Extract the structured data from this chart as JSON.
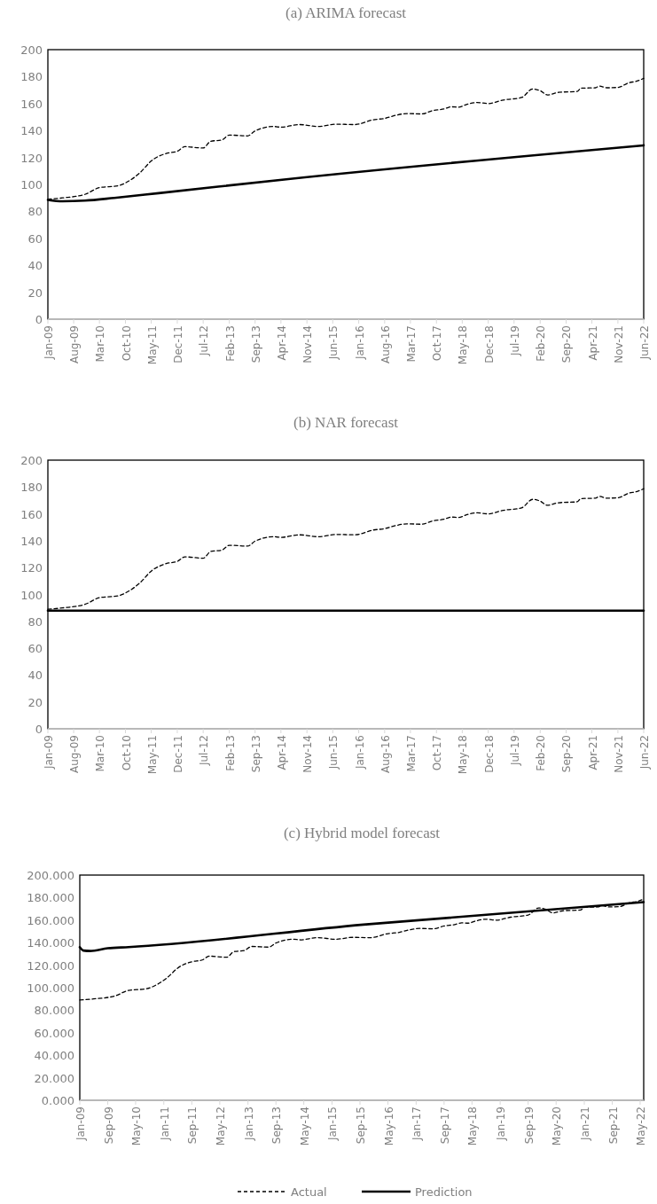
{
  "chart_data": [
    {
      "type": "line",
      "title": "(a) ARIMA forecast",
      "xlim": [
        "2009-01",
        "2022-06"
      ],
      "ylim": [
        0,
        200
      ],
      "yticks": [
        0,
        20,
        40,
        60,
        80,
        100,
        120,
        140,
        160,
        180,
        200
      ],
      "xticks": [
        {
          "value": "2009-01",
          "label": "Jan-09"
        },
        {
          "value": "2009-08",
          "label": "Aug-09"
        },
        {
          "value": "2010-03",
          "label": "Mar-10"
        },
        {
          "value": "2010-10",
          "label": "Oct-10"
        },
        {
          "value": "2011-05",
          "label": "May-11"
        },
        {
          "value": "2011-12",
          "label": "Dec-11"
        },
        {
          "value": "2012-07",
          "label": "Jul-12"
        },
        {
          "value": "2013-02",
          "label": "Feb-13"
        },
        {
          "value": "2013-09",
          "label": "Sep-13"
        },
        {
          "value": "2014-04",
          "label": "Apr-14"
        },
        {
          "value": "2014-11",
          "label": "Nov-14"
        },
        {
          "value": "2015-06",
          "label": "Jun-15"
        },
        {
          "value": "2016-01",
          "label": "Jan-16"
        },
        {
          "value": "2016-08",
          "label": "Aug-16"
        },
        {
          "value": "2017-03",
          "label": "Mar-17"
        },
        {
          "value": "2017-10",
          "label": "Oct-17"
        },
        {
          "value": "2018-05",
          "label": "May-18"
        },
        {
          "value": "2018-12",
          "label": "Dec-18"
        },
        {
          "value": "2019-07",
          "label": "Jul-19"
        },
        {
          "value": "2020-02",
          "label": "Feb-20"
        },
        {
          "value": "2020-09",
          "label": "Sep-20"
        },
        {
          "value": "2021-04",
          "label": "Apr-21"
        },
        {
          "value": "2021-11",
          "label": "Nov-21"
        },
        {
          "value": "2022-06",
          "label": "Jun-22"
        }
      ],
      "grid": false,
      "legend": false,
      "series": [
        {
          "color": "#000000",
          "line_style": "dashed",
          "x": [
            "2009-01",
            "2009-05",
            "2009-11",
            "2010-03",
            "2010-08",
            "2010-11",
            "2011-02",
            "2011-05",
            "2011-09",
            "2011-12",
            "2012-02",
            "2012-07",
            "2012-09",
            "2012-12",
            "2013-02",
            "2013-07",
            "2013-09",
            "2014-02",
            "2014-04",
            "2014-09",
            "2015-02",
            "2015-07",
            "2015-12",
            "2016-05",
            "2016-08",
            "2016-11",
            "2017-02",
            "2017-06",
            "2017-09",
            "2017-12",
            "2018-02",
            "2018-04",
            "2018-06",
            "2018-09",
            "2018-12",
            "2019-04",
            "2019-09",
            "2019-12",
            "2020-02",
            "2020-04",
            "2020-07",
            "2020-12",
            "2021-01",
            "2021-05",
            "2021-06",
            "2021-08",
            "2021-11",
            "2022-02",
            "2022-04",
            "2022-06"
          ],
          "values": [
            89,
            90,
            92.6,
            97.6,
            99,
            102.7,
            109,
            117.4,
            123,
            124.6,
            128,
            127,
            132,
            133,
            136.6,
            136,
            139.7,
            143,
            142.5,
            144.4,
            143,
            144.7,
            144.4,
            148,
            149,
            151.3,
            152.6,
            152.3,
            154.8,
            156,
            157.6,
            157.3,
            159.2,
            160.8,
            160,
            162.6,
            164.5,
            170.8,
            169.5,
            166.4,
            168.3,
            169,
            171.4,
            171.7,
            173,
            171.7,
            172,
            175.5,
            176.5,
            178.7
          ]
        },
        {
          "color": "#000000",
          "line_style": "solid",
          "x": [
            "2009-01",
            "2009-05",
            "2009-11",
            "2010-07",
            "2011-07",
            "2014-06",
            "2022-06"
          ],
          "values": [
            88.5,
            87.5,
            88,
            90,
            93.5,
            104,
            129
          ]
        }
      ]
    },
    {
      "type": "line",
      "title": "(b) NAR forecast",
      "xlim": [
        "2009-01",
        "2022-06"
      ],
      "ylim": [
        0,
        200
      ],
      "yticks": [
        0,
        20,
        40,
        60,
        80,
        100,
        120,
        140,
        160,
        180,
        200
      ],
      "xticks": [
        {
          "value": "2009-01",
          "label": "Jan-09"
        },
        {
          "value": "2009-08",
          "label": "Aug-09"
        },
        {
          "value": "2010-03",
          "label": "Mar-10"
        },
        {
          "value": "2010-10",
          "label": "Oct-10"
        },
        {
          "value": "2011-05",
          "label": "May-11"
        },
        {
          "value": "2011-12",
          "label": "Dec-11"
        },
        {
          "value": "2012-07",
          "label": "Jul-12"
        },
        {
          "value": "2013-02",
          "label": "Feb-13"
        },
        {
          "value": "2013-09",
          "label": "Sep-13"
        },
        {
          "value": "2014-04",
          "label": "Apr-14"
        },
        {
          "value": "2014-11",
          "label": "Nov-14"
        },
        {
          "value": "2015-06",
          "label": "Jun-15"
        },
        {
          "value": "2016-01",
          "label": "Jan-16"
        },
        {
          "value": "2016-08",
          "label": "Aug-16"
        },
        {
          "value": "2017-03",
          "label": "Mar-17"
        },
        {
          "value": "2017-10",
          "label": "Oct-17"
        },
        {
          "value": "2018-05",
          "label": "May-18"
        },
        {
          "value": "2018-12",
          "label": "Dec-18"
        },
        {
          "value": "2019-07",
          "label": "Jul-19"
        },
        {
          "value": "2020-02",
          "label": "Feb-20"
        },
        {
          "value": "2020-09",
          "label": "Sep-20"
        },
        {
          "value": "2021-04",
          "label": "Apr-21"
        },
        {
          "value": "2021-11",
          "label": "Nov-21"
        },
        {
          "value": "2022-06",
          "label": "Jun-22"
        }
      ],
      "grid": false,
      "legend": false,
      "series": [
        {
          "color": "#000000",
          "line_style": "dashed",
          "x": [
            "2009-01",
            "2009-05",
            "2009-11",
            "2010-03",
            "2010-08",
            "2010-11",
            "2011-02",
            "2011-05",
            "2011-09",
            "2011-12",
            "2012-02",
            "2012-07",
            "2012-09",
            "2012-12",
            "2013-02",
            "2013-07",
            "2013-09",
            "2014-02",
            "2014-04",
            "2014-09",
            "2015-02",
            "2015-07",
            "2015-12",
            "2016-05",
            "2016-08",
            "2016-11",
            "2017-02",
            "2017-06",
            "2017-09",
            "2017-12",
            "2018-02",
            "2018-04",
            "2018-06",
            "2018-09",
            "2018-12",
            "2019-04",
            "2019-09",
            "2019-12",
            "2020-02",
            "2020-04",
            "2020-07",
            "2020-12",
            "2021-01",
            "2021-05",
            "2021-06",
            "2021-08",
            "2021-11",
            "2022-02",
            "2022-04",
            "2022-06"
          ],
          "values": [
            89,
            90,
            92.6,
            97.6,
            99,
            102.7,
            109,
            117.4,
            123,
            124.6,
            128,
            127,
            132,
            133,
            136.6,
            136,
            139.7,
            143,
            142.5,
            144.4,
            143,
            144.7,
            144.4,
            148,
            149,
            151.3,
            152.6,
            152.3,
            154.8,
            156,
            157.6,
            157.3,
            159.2,
            160.8,
            160,
            162.6,
            164.5,
            170.8,
            169.5,
            166.4,
            168.3,
            169,
            171.4,
            171.7,
            173,
            171.7,
            172,
            175.5,
            176.5,
            178.7
          ]
        },
        {
          "color": "#000000",
          "line_style": "solid",
          "x": [
            "2009-01",
            "2022-06"
          ],
          "values": [
            88,
            88
          ]
        }
      ]
    },
    {
      "type": "line",
      "title": "(c) Hybrid model forecast",
      "xlim": [
        "2009-01",
        "2022-06"
      ],
      "ylim": [
        0,
        200
      ],
      "yticks": [
        {
          "value": 0,
          "label": "0.000"
        },
        {
          "value": 20,
          "label": "20.000"
        },
        {
          "value": 40,
          "label": "40.000"
        },
        {
          "value": 60,
          "label": "60.000"
        },
        {
          "value": 80,
          "label": "80.000"
        },
        {
          "value": 100,
          "label": "100.000"
        },
        {
          "value": 120,
          "label": "120.000"
        },
        {
          "value": 140,
          "label": "140.000"
        },
        {
          "value": 160,
          "label": "160.000"
        },
        {
          "value": 180,
          "label": "180.000"
        },
        {
          "value": 200,
          "label": "200.000"
        }
      ],
      "xticks": [
        {
          "value": "2009-01",
          "label": "Jan-09"
        },
        {
          "value": "2009-09",
          "label": "Sep-09"
        },
        {
          "value": "2010-05",
          "label": "May-10"
        },
        {
          "value": "2011-01",
          "label": "Jan-11"
        },
        {
          "value": "2011-09",
          "label": "Sep-11"
        },
        {
          "value": "2012-05",
          "label": "May-12"
        },
        {
          "value": "2013-01",
          "label": "Jan-13"
        },
        {
          "value": "2013-09",
          "label": "Sep-13"
        },
        {
          "value": "2014-05",
          "label": "May-14"
        },
        {
          "value": "2015-01",
          "label": "Jan-15"
        },
        {
          "value": "2015-09",
          "label": "Sep-15"
        },
        {
          "value": "2016-05",
          "label": "May-16"
        },
        {
          "value": "2017-01",
          "label": "Jan-17"
        },
        {
          "value": "2017-09",
          "label": "Sep-17"
        },
        {
          "value": "2018-05",
          "label": "May-18"
        },
        {
          "value": "2019-01",
          "label": "Jan-19"
        },
        {
          "value": "2019-09",
          "label": "Sep-19"
        },
        {
          "value": "2020-05",
          "label": "May-20"
        },
        {
          "value": "2021-01",
          "label": "Jan-21"
        },
        {
          "value": "2021-09",
          "label": "Sep-21"
        },
        {
          "value": "2022-05",
          "label": "May-22"
        }
      ],
      "grid": false,
      "legend": "bottom",
      "series": [
        {
          "name": "Actual",
          "color": "#000000",
          "line_style": "dashed",
          "x": [
            "2009-01",
            "2009-05",
            "2009-11",
            "2010-03",
            "2010-08",
            "2010-11",
            "2011-02",
            "2011-05",
            "2011-09",
            "2011-12",
            "2012-02",
            "2012-07",
            "2012-09",
            "2012-12",
            "2013-02",
            "2013-07",
            "2013-09",
            "2014-02",
            "2014-04",
            "2014-09",
            "2015-02",
            "2015-07",
            "2015-12",
            "2016-05",
            "2016-08",
            "2016-11",
            "2017-02",
            "2017-06",
            "2017-09",
            "2017-12",
            "2018-02",
            "2018-04",
            "2018-06",
            "2018-09",
            "2018-12",
            "2019-04",
            "2019-09",
            "2019-12",
            "2020-02",
            "2020-04",
            "2020-07",
            "2020-12",
            "2021-01",
            "2021-05",
            "2021-06",
            "2021-08",
            "2021-11",
            "2022-02",
            "2022-04",
            "2022-06"
          ],
          "values": [
            89,
            90,
            92.6,
            97.6,
            99,
            102.7,
            109,
            117.4,
            123,
            124.6,
            128,
            127,
            132,
            133,
            136.6,
            136,
            139.7,
            143,
            142.5,
            144.4,
            143,
            144.7,
            144.4,
            148,
            149,
            151.3,
            152.6,
            152.3,
            154.8,
            156,
            157.6,
            157.3,
            159.2,
            160.8,
            160,
            162.6,
            164.5,
            170.8,
            169.5,
            166.4,
            168.3,
            169,
            171.4,
            171.7,
            173,
            171.7,
            172,
            175.5,
            176.5,
            178.7
          ]
        },
        {
          "name": "Prediction",
          "color": "#000000",
          "line_style": "solid",
          "x": [
            "2009-01",
            "2009-02",
            "2009-04",
            "2009-09",
            "2010-03",
            "2015-10",
            "2022-06"
          ],
          "values": [
            136,
            133,
            132.6,
            135,
            136,
            156,
            176
          ]
        }
      ]
    }
  ]
}
